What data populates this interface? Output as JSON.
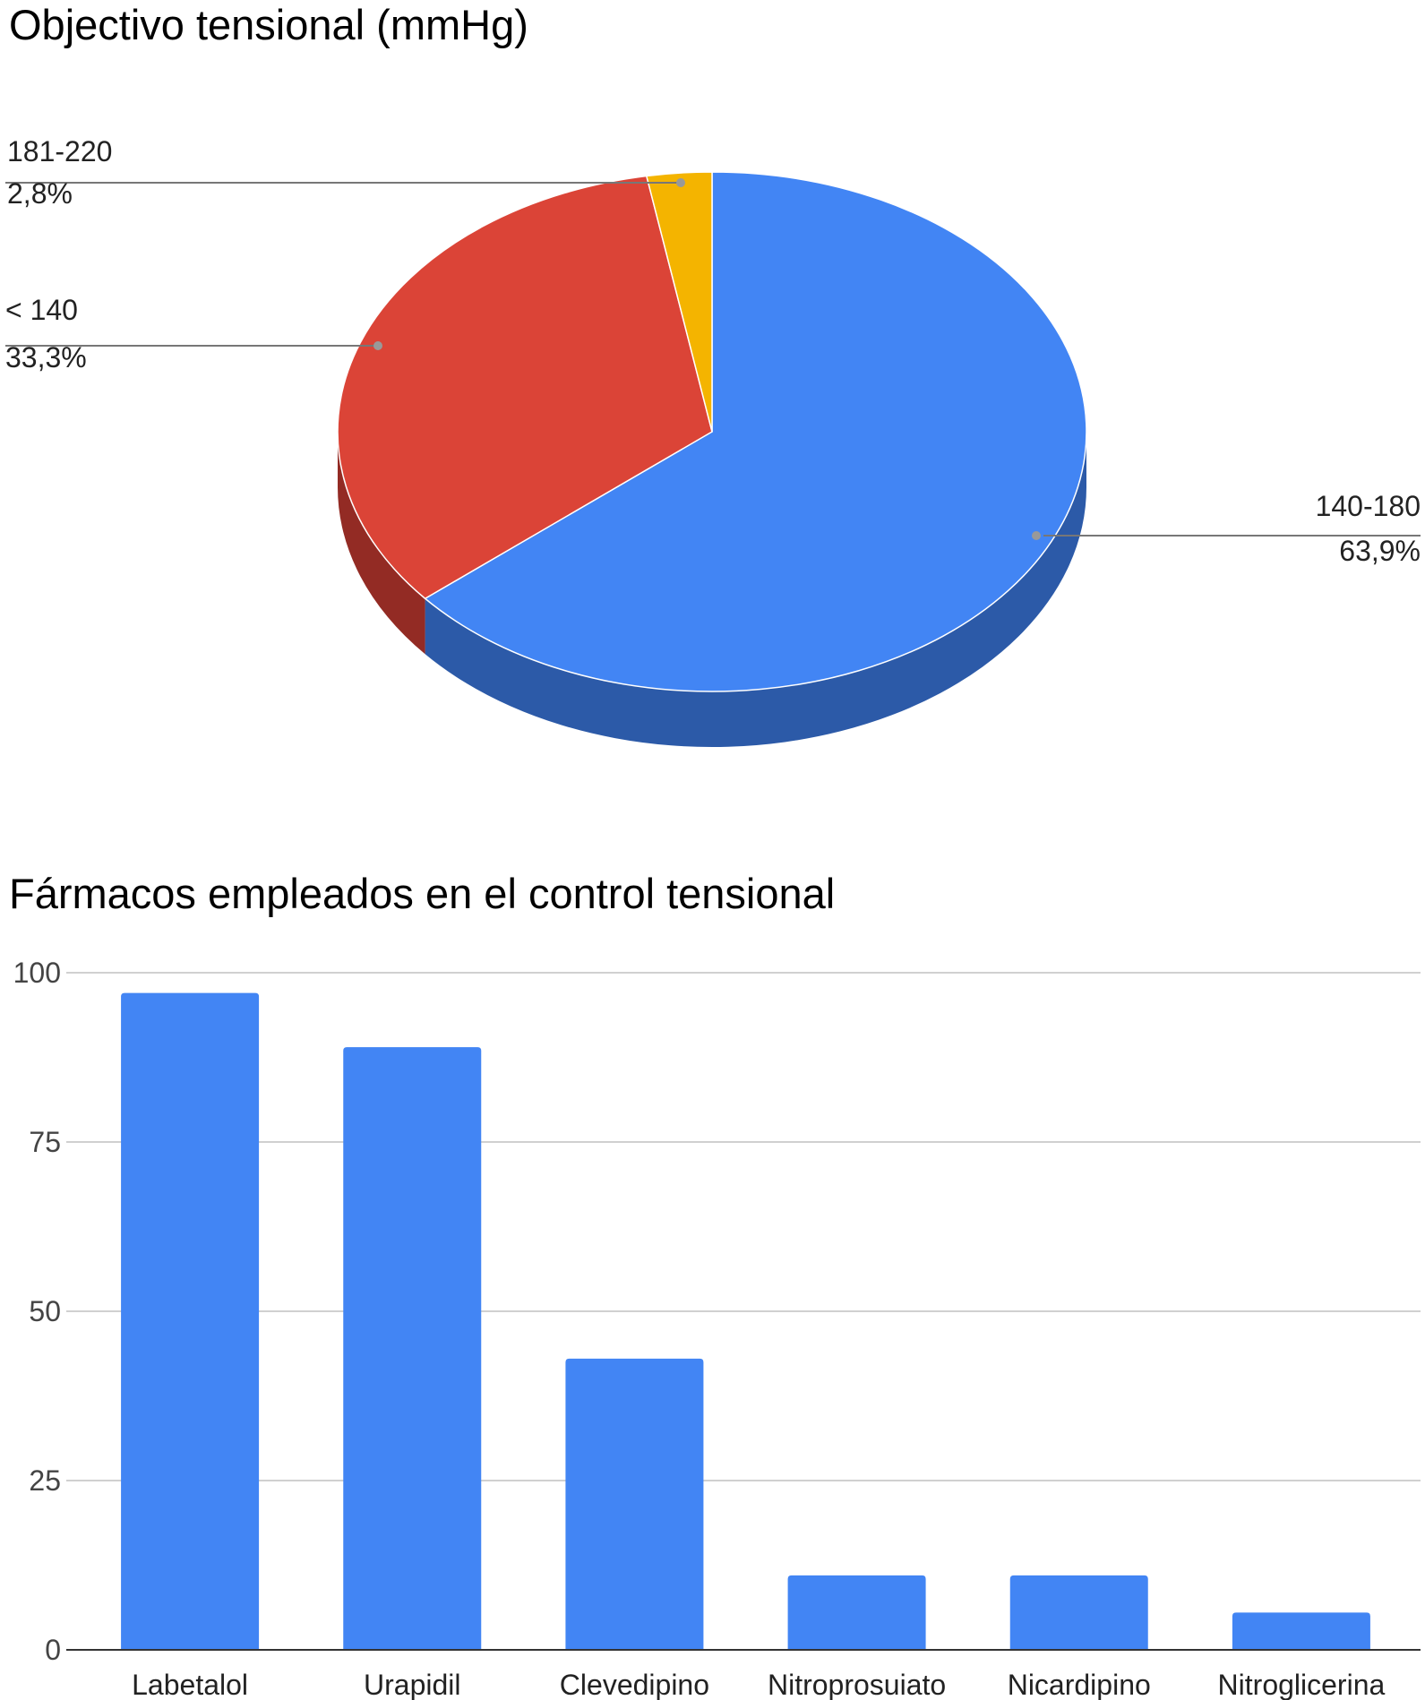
{
  "chart_data": [
    {
      "type": "pie",
      "title": "Objectivo tensional (mmHg)",
      "slices": [
        {
          "label": "140-180",
          "value": 63.9,
          "value_label": "63,9%",
          "color": "#4285f4",
          "side_color": "#2c5aa8"
        },
        {
          "label": "< 140",
          "value": 33.3,
          "value_label": "33,3%",
          "color": "#db4437",
          "side_color": "#932b24"
        },
        {
          "label": "181-220",
          "value": 2.8,
          "value_label": "2,8%",
          "color": "#f4b400",
          "side_color": "#a67a00"
        }
      ],
      "style": "3d"
    },
    {
      "type": "bar",
      "title": "Fármacos empleados en el control tensional",
      "categories": [
        "Labetalol",
        "Urapidil",
        "Clevedipino",
        "Nitroprosuiato",
        "Nicardipino",
        "Nitroglicerina"
      ],
      "values": [
        97,
        89,
        43,
        11,
        11,
        5.5
      ],
      "ylim": [
        0,
        100
      ],
      "yticks": [
        "0",
        "25",
        "50",
        "75",
        "100"
      ],
      "color": "#4285f4",
      "grid": true
    }
  ]
}
